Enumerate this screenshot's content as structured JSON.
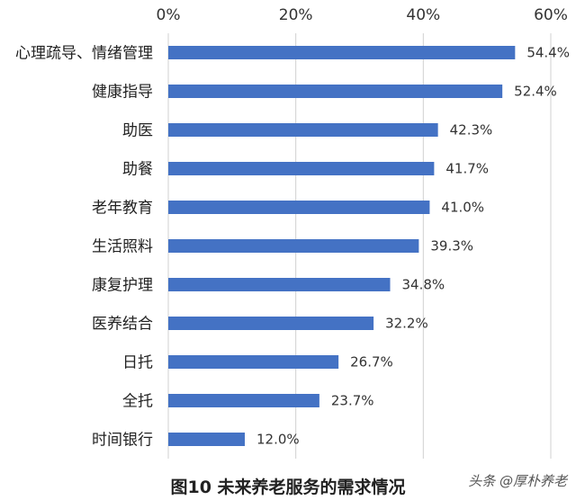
{
  "chart_data": {
    "type": "bar",
    "orientation": "horizontal",
    "categories": [
      "心理疏导、情绪管理",
      "健康指导",
      "助医",
      "助餐",
      "老年教育",
      "生活照料",
      "康复护理",
      "医养结合",
      "日托",
      "全托",
      "时间银行"
    ],
    "values": [
      54.4,
      52.4,
      42.3,
      41.7,
      41.0,
      39.3,
      34.8,
      32.2,
      26.7,
      23.7,
      12.0
    ],
    "value_labels": [
      "54.4%",
      "52.4%",
      "42.3%",
      "41.7%",
      "41.0%",
      "39.3%",
      "34.8%",
      "32.2%",
      "26.7%",
      "23.7%",
      "12.0%"
    ],
    "x_ticks": [
      "0%",
      "20%",
      "40%",
      "60%"
    ],
    "xlim": [
      0,
      60
    ],
    "axis_position": "top",
    "grid": true,
    "bar_color": "#4472c4",
    "title": "图10 未来养老服务的需求情况"
  },
  "watermark": "头条 @厚朴养老"
}
